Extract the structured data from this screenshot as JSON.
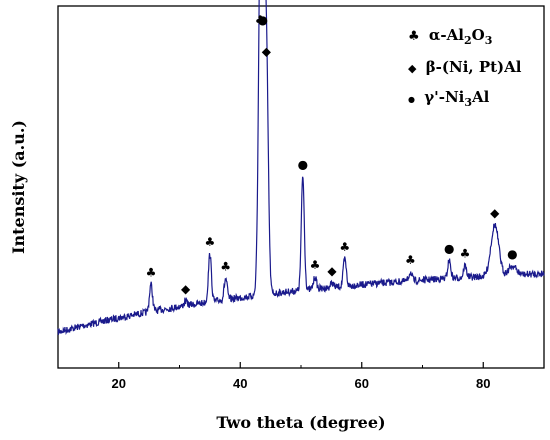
{
  "chart_data": {
    "type": "line",
    "xlabel": "Two theta (degree)",
    "ylabel": "Intensity (a.u.)",
    "xlim": [
      10,
      90
    ],
    "x_ticks": [
      "20",
      "40",
      "60",
      "80"
    ],
    "y_ticks_shown": false,
    "series_color": "#1a1a8c",
    "legend_position": "top-right",
    "legend": [
      {
        "symbol": "♣",
        "text": "α-Al",
        "sub": "2",
        "text2": "O",
        "sub2": "3"
      },
      {
        "symbol": "◆",
        "text": "β-(Ni, Pt)Al",
        "sub": "",
        "text2": "",
        "sub2": ""
      },
      {
        "symbol": "●",
        "text": "γ'-Ni",
        "sub": "3",
        "text2": "Al",
        "sub2": ""
      }
    ],
    "peaks": [
      {
        "x": 25.3,
        "height": 0.09,
        "phase": "alpha"
      },
      {
        "x": 31.0,
        "height": 0.015,
        "phase": "beta"
      },
      {
        "x": 35.0,
        "height": 0.16,
        "phase": "alpha"
      },
      {
        "x": 37.6,
        "height": 0.07,
        "phase": "alpha"
      },
      {
        "x": 43.3,
        "height": 1.0,
        "phase": "alpha"
      },
      {
        "x": 43.7,
        "height": 0.9,
        "phase": "gamma"
      },
      {
        "x": 44.3,
        "height": 0.77,
        "phase": "beta"
      },
      {
        "x": 50.3,
        "height": 0.38,
        "phase": "gamma"
      },
      {
        "x": 52.3,
        "height": 0.04,
        "phase": "alpha"
      },
      {
        "x": 55.1,
        "height": 0.015,
        "phase": "beta"
      },
      {
        "x": 57.2,
        "height": 0.09,
        "phase": "alpha"
      },
      {
        "x": 68.0,
        "height": 0.03,
        "phase": "alpha"
      },
      {
        "x": 74.4,
        "height": 0.06,
        "phase": "gamma"
      },
      {
        "x": 77.0,
        "height": 0.04,
        "phase": "alpha"
      },
      {
        "x": 81.9,
        "height": 0.17,
        "phase": "beta"
      },
      {
        "x": 84.8,
        "height": 0.03,
        "phase": "gamma"
      }
    ]
  }
}
